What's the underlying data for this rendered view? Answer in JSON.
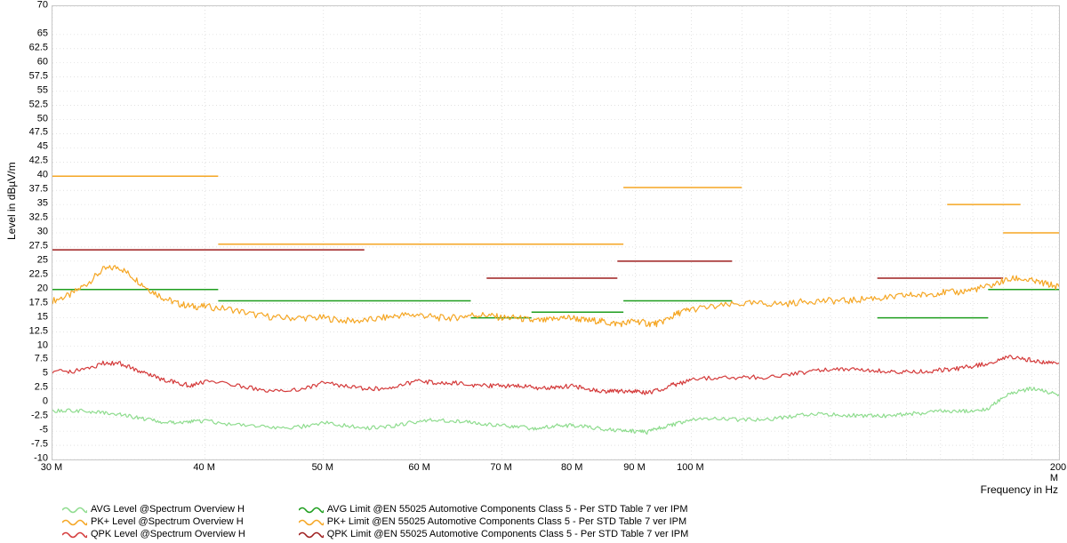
{
  "chart": {
    "type": "line",
    "background_color": "#ffffff",
    "plot_border_color": "#c8c8c8",
    "grid_color": "#d0d0d0",
    "axis_color": "#000000",
    "y_label": "Level in dBµV/m",
    "x_label": "Frequency in Hz",
    "label_fontsize": 12,
    "tick_fontsize": 11,
    "x_scale": "log",
    "xlim": [
      30,
      200
    ],
    "ylim": [
      -10,
      70
    ],
    "ytick_step": 2.5,
    "y_ticks": [
      -10,
      -7.5,
      -5,
      -2.5,
      0,
      2.5,
      5,
      7.5,
      10,
      12.5,
      15,
      17.5,
      20,
      22.5,
      25,
      27.5,
      30,
      32.5,
      35,
      37.5,
      40,
      42.5,
      45,
      47.5,
      50,
      52.5,
      55,
      57.5,
      60,
      62.5,
      65,
      70
    ],
    "x_major_ticks": [
      30,
      40,
      50,
      60,
      70,
      80,
      90,
      100,
      200
    ],
    "x_tick_labels": [
      "30 M",
      "40 M",
      "50 M",
      "60 M",
      "70 M",
      "80 M",
      "90 M",
      "100 M",
      "200 M"
    ],
    "x_minor_grid": [
      30,
      40,
      50,
      60,
      70,
      80,
      90,
      100,
      110,
      120,
      130,
      140,
      150,
      160,
      170,
      180,
      190,
      200
    ],
    "legend": {
      "col1": [
        {
          "label": "AVG Level @Spectrum Overview H",
          "color": "#8edc8e",
          "style": "wiggle"
        },
        {
          "label": "PK+ Level @Spectrum Overview H",
          "color": "#f5a623",
          "style": "wiggle"
        },
        {
          "label": "QPK Level @Spectrum Overview H",
          "color": "#d43a3a",
          "style": "wiggle"
        }
      ],
      "col2": [
        {
          "label": "AVG Limit @EN 55025 Automotive Components Class 5 - Per STD Table 7 ver IPM",
          "color": "#1e9e1e",
          "style": "wiggle"
        },
        {
          "label": "PK+ Limit @EN 55025 Automotive Components Class 5 - Per STD Table 7 ver IPM",
          "color": "#f5a623",
          "style": "wiggle"
        },
        {
          "label": "QPK Limit @EN 55025 Automotive Components Class 5 - Per STD Table 7 ver IPM",
          "color": "#9e1e1e",
          "style": "wiggle"
        }
      ]
    },
    "limits": [
      {
        "name": "PK+ Limit",
        "color": "#f5a623",
        "stroke_width": 1.6,
        "segments": [
          {
            "x0": 30,
            "x1": 41,
            "y": 40
          },
          {
            "x0": 41,
            "x1": 88,
            "y": 28
          },
          {
            "x0": 88,
            "x1": 110,
            "y": 38
          },
          {
            "x0": 162,
            "x1": 186,
            "y": 35
          },
          {
            "x0": 180,
            "x1": 200,
            "y": 30
          }
        ]
      },
      {
        "name": "QPK Limit",
        "color": "#9e1e1e",
        "stroke_width": 1.6,
        "segments": [
          {
            "x0": 30,
            "x1": 54,
            "y": 27
          },
          {
            "x0": 68,
            "x1": 87,
            "y": 22
          },
          {
            "x0": 87,
            "x1": 108,
            "y": 25
          },
          {
            "x0": 142,
            "x1": 180,
            "y": 22
          }
        ]
      },
      {
        "name": "AVG Limit",
        "color": "#1e9e1e",
        "stroke_width": 1.6,
        "segments": [
          {
            "x0": 30,
            "x1": 41,
            "y": 20
          },
          {
            "x0": 41,
            "x1": 66,
            "y": 18
          },
          {
            "x0": 66,
            "x1": 74,
            "y": 15
          },
          {
            "x0": 74,
            "x1": 88,
            "y": 16
          },
          {
            "x0": 88,
            "x1": 108,
            "y": 18
          },
          {
            "x0": 142,
            "x1": 175,
            "y": 15
          },
          {
            "x0": 175,
            "x1": 200,
            "y": 20
          }
        ]
      }
    ],
    "series": [
      {
        "name": "PK+ Level",
        "color": "#f5a623",
        "stroke_width": 1.2,
        "noise": 0.6,
        "points": [
          [
            30,
            18
          ],
          [
            31,
            19
          ],
          [
            32,
            21
          ],
          [
            33,
            23.5
          ],
          [
            34,
            24
          ],
          [
            35,
            22
          ],
          [
            36,
            20
          ],
          [
            37,
            18.5
          ],
          [
            38,
            17.5
          ],
          [
            39,
            17
          ],
          [
            40,
            17
          ],
          [
            42,
            16.5
          ],
          [
            44,
            15.5
          ],
          [
            46,
            15
          ],
          [
            48,
            15
          ],
          [
            50,
            15
          ],
          [
            52,
            14.5
          ],
          [
            54,
            14.5
          ],
          [
            56,
            15
          ],
          [
            58,
            15.5
          ],
          [
            60,
            15.5
          ],
          [
            62,
            15
          ],
          [
            64,
            15
          ],
          [
            66,
            15.5
          ],
          [
            68,
            15.5
          ],
          [
            70,
            15
          ],
          [
            72,
            15
          ],
          [
            74,
            14.5
          ],
          [
            76,
            14.5
          ],
          [
            78,
            15
          ],
          [
            80,
            15
          ],
          [
            82,
            14.5
          ],
          [
            84,
            14.5
          ],
          [
            86,
            14
          ],
          [
            88,
            14
          ],
          [
            90,
            14.5
          ],
          [
            92,
            14
          ],
          [
            94,
            14
          ],
          [
            96,
            15
          ],
          [
            98,
            16
          ],
          [
            100,
            16.5
          ],
          [
            105,
            17
          ],
          [
            110,
            17.5
          ],
          [
            115,
            17.5
          ],
          [
            120,
            17.5
          ],
          [
            125,
            18
          ],
          [
            130,
            18
          ],
          [
            135,
            18
          ],
          [
            140,
            18.5
          ],
          [
            145,
            18.5
          ],
          [
            150,
            19
          ],
          [
            155,
            19
          ],
          [
            160,
            19.5
          ],
          [
            165,
            19.5
          ],
          [
            170,
            20
          ],
          [
            175,
            20.5
          ],
          [
            180,
            21.5
          ],
          [
            185,
            22
          ],
          [
            190,
            21.5
          ],
          [
            195,
            21
          ],
          [
            200,
            20.5
          ]
        ]
      },
      {
        "name": "QPK Level",
        "color": "#d43a3a",
        "stroke_width": 1.2,
        "noise": 0.4,
        "points": [
          [
            30,
            5.5
          ],
          [
            31,
            5.5
          ],
          [
            32,
            6
          ],
          [
            33,
            7
          ],
          [
            34,
            7
          ],
          [
            35,
            6
          ],
          [
            36,
            5
          ],
          [
            37,
            4
          ],
          [
            38,
            3.5
          ],
          [
            39,
            3
          ],
          [
            40,
            3.8
          ],
          [
            42,
            3.2
          ],
          [
            44,
            2.5
          ],
          [
            46,
            2
          ],
          [
            48,
            2.5
          ],
          [
            50,
            3.5
          ],
          [
            52,
            3
          ],
          [
            54,
            2.5
          ],
          [
            56,
            2.5
          ],
          [
            58,
            3.2
          ],
          [
            60,
            3.8
          ],
          [
            62,
            3.5
          ],
          [
            64,
            3.5
          ],
          [
            66,
            3.2
          ],
          [
            68,
            3
          ],
          [
            70,
            3
          ],
          [
            72,
            3
          ],
          [
            74,
            2.8
          ],
          [
            76,
            2.5
          ],
          [
            78,
            2.8
          ],
          [
            80,
            3
          ],
          [
            82,
            2.5
          ],
          [
            84,
            2.2
          ],
          [
            86,
            2
          ],
          [
            88,
            2
          ],
          [
            90,
            2
          ],
          [
            92,
            1.8
          ],
          [
            94,
            2.2
          ],
          [
            96,
            3
          ],
          [
            98,
            3.5
          ],
          [
            100,
            4
          ],
          [
            105,
            4.5
          ],
          [
            110,
            4.5
          ],
          [
            115,
            4.5
          ],
          [
            120,
            5
          ],
          [
            125,
            5.5
          ],
          [
            130,
            6
          ],
          [
            135,
            6
          ],
          [
            140,
            5.8
          ],
          [
            145,
            5.5
          ],
          [
            150,
            5.5
          ],
          [
            155,
            5.5
          ],
          [
            160,
            5.8
          ],
          [
            165,
            6
          ],
          [
            170,
            6.5
          ],
          [
            175,
            7
          ],
          [
            180,
            8
          ],
          [
            185,
            8
          ],
          [
            190,
            7.5
          ],
          [
            195,
            7
          ],
          [
            200,
            7
          ]
        ]
      },
      {
        "name": "AVG Level",
        "color": "#8edc8e",
        "stroke_width": 1.2,
        "noise": 0.35,
        "points": [
          [
            30,
            -1.5
          ],
          [
            31,
            -1.3
          ],
          [
            32,
            -1.5
          ],
          [
            33,
            -1.8
          ],
          [
            34,
            -2
          ],
          [
            35,
            -2.5
          ],
          [
            36,
            -3
          ],
          [
            37,
            -3.5
          ],
          [
            38,
            -3.5
          ],
          [
            39,
            -3.3
          ],
          [
            40,
            -3.2
          ],
          [
            42,
            -3.8
          ],
          [
            44,
            -4.2
          ],
          [
            46,
            -4.5
          ],
          [
            48,
            -4.2
          ],
          [
            50,
            -3.5
          ],
          [
            52,
            -4
          ],
          [
            54,
            -4.5
          ],
          [
            56,
            -4.3
          ],
          [
            58,
            -3.8
          ],
          [
            60,
            -3.2
          ],
          [
            62,
            -3
          ],
          [
            64,
            -3.2
          ],
          [
            66,
            -3.5
          ],
          [
            68,
            -3.8
          ],
          [
            70,
            -4
          ],
          [
            72,
            -4.2
          ],
          [
            74,
            -4.5
          ],
          [
            76,
            -4.3
          ],
          [
            78,
            -4
          ],
          [
            80,
            -4
          ],
          [
            82,
            -4.2
          ],
          [
            84,
            -4.5
          ],
          [
            86,
            -4.8
          ],
          [
            88,
            -5
          ],
          [
            90,
            -5
          ],
          [
            92,
            -5.2
          ],
          [
            94,
            -4.5
          ],
          [
            96,
            -4
          ],
          [
            98,
            -3.5
          ],
          [
            100,
            -3
          ],
          [
            105,
            -2.8
          ],
          [
            110,
            -3
          ],
          [
            115,
            -3
          ],
          [
            120,
            -2.5
          ],
          [
            125,
            -2
          ],
          [
            130,
            -2
          ],
          [
            135,
            -2.2
          ],
          [
            140,
            -2.3
          ],
          [
            145,
            -2.3
          ],
          [
            150,
            -2
          ],
          [
            155,
            -1.8
          ],
          [
            160,
            -1.5
          ],
          [
            165,
            -1.5
          ],
          [
            170,
            -1.5
          ],
          [
            175,
            -1
          ],
          [
            180,
            1
          ],
          [
            185,
            2
          ],
          [
            190,
            2.5
          ],
          [
            195,
            2
          ],
          [
            200,
            1.5
          ]
        ]
      }
    ]
  }
}
